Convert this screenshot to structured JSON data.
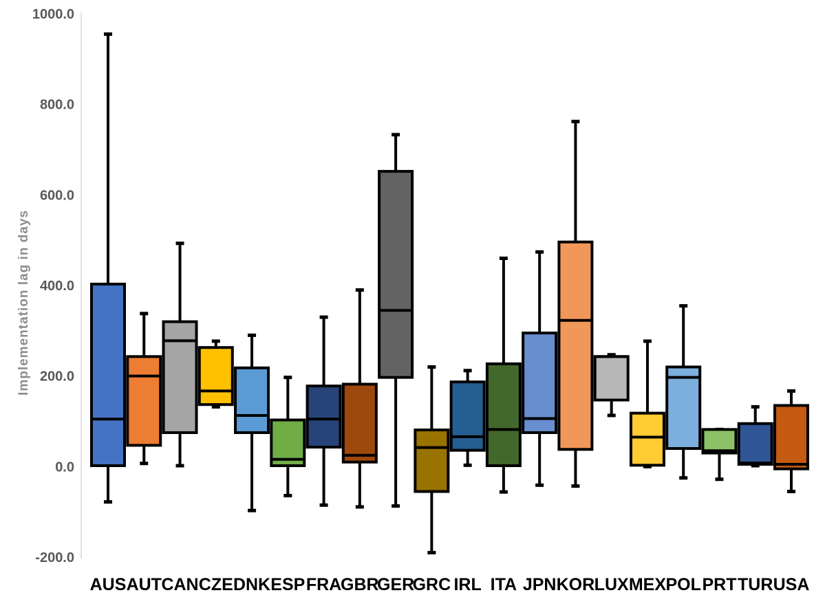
{
  "chart_data": {
    "type": "boxplot",
    "title": "",
    "xlabel": "",
    "ylabel": "Implementation lag in days",
    "ylim": [
      -200,
      1000
    ],
    "yticks": [
      "-200.0",
      "0.0",
      "200.0",
      "400.0",
      "600.0",
      "800.0",
      "1000.0"
    ],
    "grid": false,
    "legend": "none",
    "categories": [
      "AUS",
      "AUT",
      "CAN",
      "CZE",
      "DNK",
      "ESP",
      "FRA",
      "GBR",
      "GER",
      "GRC",
      "IRL",
      "ITA",
      "JPN",
      "KOR",
      "LUX",
      "MEX",
      "POL",
      "PRT",
      "TUR",
      "USA"
    ],
    "series": [
      {
        "category": "AUS",
        "min": -78,
        "q1": 2,
        "median": 105,
        "q3": 403,
        "max": 955,
        "color": "#4472C4"
      },
      {
        "category": "AUT",
        "min": 7,
        "q1": 47,
        "median": 200,
        "q3": 243,
        "max": 338,
        "color": "#ED7D31"
      },
      {
        "category": "CAN",
        "min": 2,
        "q1": 75,
        "median": 278,
        "q3": 320,
        "max": 493,
        "color": "#A5A5A5"
      },
      {
        "category": "CZE",
        "min": 132,
        "q1": 137,
        "median": 167,
        "q3": 263,
        "max": 277,
        "color": "#FFC000"
      },
      {
        "category": "DNK",
        "min": -97,
        "q1": 75,
        "median": 113,
        "q3": 218,
        "max": 290,
        "color": "#5B9BD5"
      },
      {
        "category": "ESP",
        "min": -64,
        "q1": 2,
        "median": 16,
        "q3": 103,
        "max": 197,
        "color": "#70AD47"
      },
      {
        "category": "FRA",
        "min": -85,
        "q1": 43,
        "median": 105,
        "q3": 178,
        "max": 330,
        "color": "#264478"
      },
      {
        "category": "GBR",
        "min": -89,
        "q1": 10,
        "median": 25,
        "q3": 182,
        "max": 390,
        "color": "#9E480E"
      },
      {
        "category": "GER",
        "min": -87,
        "q1": 197,
        "median": 345,
        "q3": 652,
        "max": 733,
        "color": "#636363"
      },
      {
        "category": "GRC",
        "min": -190,
        "q1": -55,
        "median": 42,
        "q3": 81,
        "max": 220,
        "color": "#997300"
      },
      {
        "category": "IRL",
        "min": 3,
        "q1": 36,
        "median": 66,
        "q3": 187,
        "max": 212,
        "color": "#255E91"
      },
      {
        "category": "ITA",
        "min": -56,
        "q1": 2,
        "median": 82,
        "q3": 227,
        "max": 460,
        "color": "#43682B"
      },
      {
        "category": "JPN",
        "min": -41,
        "q1": 75,
        "median": 106,
        "q3": 295,
        "max": 474,
        "color": "#698ED0"
      },
      {
        "category": "KOR",
        "min": -43,
        "q1": 38,
        "median": 323,
        "q3": 496,
        "max": 762,
        "color": "#F1975A"
      },
      {
        "category": "LUX",
        "min": 113,
        "q1": 147,
        "median": 243,
        "q3": 243,
        "max": 247,
        "color": "#B7B7B7"
      },
      {
        "category": "MEX",
        "min": 0,
        "q1": 3,
        "median": 65,
        "q3": 118,
        "max": 277,
        "color": "#FFCD33"
      },
      {
        "category": "POL",
        "min": -25,
        "q1": 40,
        "median": 197,
        "q3": 220,
        "max": 355,
        "color": "#7CAFDD"
      },
      {
        "category": "PRT",
        "min": -28,
        "q1": 30,
        "median": 35,
        "q3": 82,
        "max": 82,
        "color": "#8CC168"
      },
      {
        "category": "TUR",
        "min": 2,
        "q1": 5,
        "median": 8,
        "q3": 95,
        "max": 132,
        "color": "#2F5597"
      },
      {
        "category": "USA",
        "min": -55,
        "q1": -5,
        "median": 5,
        "q3": 135,
        "max": 167,
        "color": "#C55A11"
      }
    ]
  }
}
